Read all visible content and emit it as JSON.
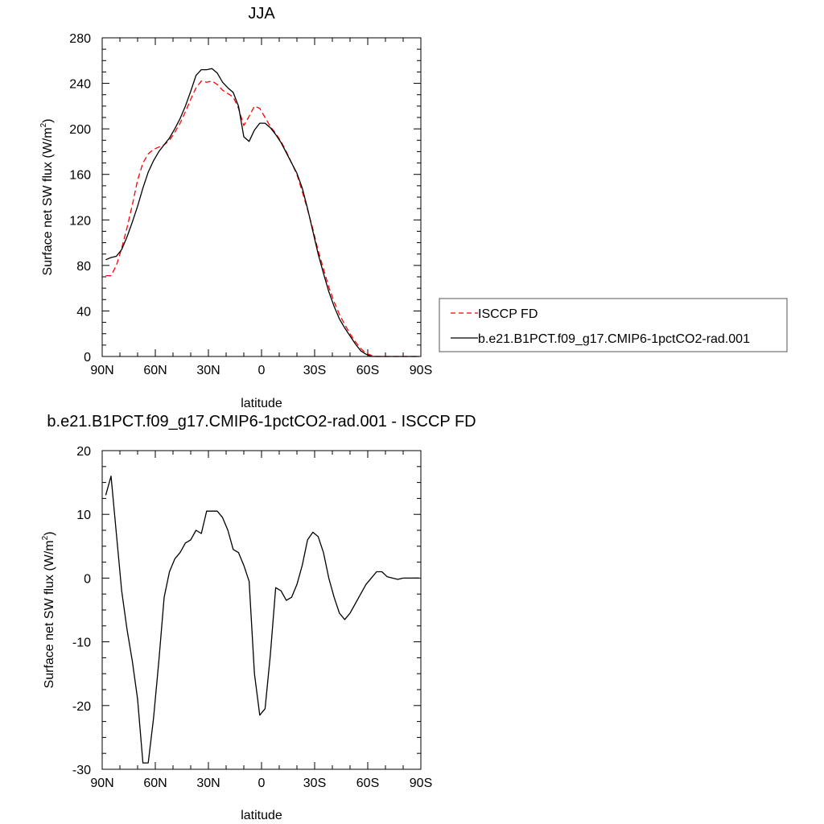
{
  "chart_data": [
    {
      "type": "line",
      "title": "JJA",
      "xlabel": "latitude",
      "ylabel": "Surface net SW flux (W/m²)",
      "ylabel_main": "Surface net SW flux (W/m",
      "ylabel_sup": "2",
      "ylabel_close": ")",
      "xlim": [
        90,
        -90
      ],
      "ylim": [
        0,
        280
      ],
      "x_ticks": [
        90,
        60,
        30,
        0,
        -30,
        -60,
        -90
      ],
      "x_tick_labels": [
        "90N",
        "60N",
        "30N",
        "0",
        "30S",
        "60S",
        "90S"
      ],
      "y_ticks": [
        0,
        40,
        80,
        120,
        160,
        200,
        240,
        280
      ],
      "y_tick_labels": [
        "0",
        "40",
        "80",
        "120",
        "160",
        "200",
        "240",
        "280"
      ],
      "legend_position": "right",
      "series": [
        {
          "name": "ISCCP FD",
          "color": "#ff0000",
          "dash": "dashed",
          "x": [
            88,
            85,
            82,
            79,
            76,
            73,
            70,
            67,
            64,
            61,
            58,
            55,
            52,
            49,
            46,
            43,
            40,
            37,
            34,
            31,
            28,
            25,
            22,
            19,
            16,
            13,
            10,
            7,
            4,
            1,
            -2,
            -5,
            -8,
            -11,
            -14,
            -17,
            -20,
            -23,
            -26,
            -29,
            -32,
            -35,
            -38,
            -41,
            -44,
            -47,
            -50,
            -53,
            -56,
            -59,
            -62,
            -65,
            -68,
            -71,
            -74,
            -77,
            -80,
            -83,
            -86,
            -89
          ],
          "y": [
            71,
            71,
            80,
            95,
            113,
            133,
            155,
            170,
            178,
            182,
            184,
            186,
            190,
            197,
            205,
            215,
            226,
            236,
            242,
            241,
            242,
            239,
            234,
            231,
            228,
            218,
            203,
            211,
            220,
            218,
            210,
            202,
            196,
            189,
            180,
            170,
            160,
            145,
            129,
            112,
            93,
            77,
            61,
            48,
            37,
            28,
            20,
            13,
            7,
            3,
            1,
            0,
            0,
            0,
            0,
            0,
            0,
            0,
            0,
            0
          ]
        },
        {
          "name": "b.e21.B1PCT.f09_g17.CMIP6-1pctCO2-rad.001",
          "color": "#000000",
          "dash": "solid",
          "x": [
            88,
            85,
            82,
            79,
            76,
            73,
            70,
            67,
            64,
            61,
            58,
            55,
            52,
            49,
            46,
            43,
            40,
            37,
            34,
            31,
            28,
            25,
            22,
            19,
            16,
            13,
            10,
            7,
            4,
            1,
            -2,
            -5,
            -8,
            -11,
            -14,
            -17,
            -20,
            -23,
            -26,
            -29,
            -32,
            -35,
            -38,
            -41,
            -44,
            -47,
            -50,
            -53,
            -56,
            -59,
            -62,
            -65,
            -68,
            -71,
            -74,
            -77,
            -80,
            -83,
            -86,
            -89
          ],
          "y": [
            85,
            87,
            88,
            94,
            105,
            118,
            132,
            148,
            162,
            172,
            180,
            186,
            192,
            200,
            209,
            220,
            233,
            247,
            252,
            252,
            253,
            249,
            241,
            236,
            232,
            220,
            193,
            189,
            199,
            205,
            205,
            201,
            195,
            188,
            179,
            170,
            161,
            148,
            130,
            110,
            90,
            73,
            57,
            44,
            33,
            25,
            18,
            11,
            5,
            2,
            0,
            0,
            0,
            0,
            0,
            0,
            0,
            0,
            0,
            0
          ]
        }
      ]
    },
    {
      "type": "line",
      "title": "b.e21.B1PCT.f09_g17.CMIP6-1pctCO2-rad.001 - ISCCP FD",
      "xlabel": "latitude",
      "ylabel": "Surface net SW flux (W/m²)",
      "ylabel_main": "Surface net SW flux (W/m",
      "ylabel_sup": "2",
      "ylabel_close": ")",
      "xlim": [
        90,
        -90
      ],
      "ylim": [
        -30,
        20
      ],
      "x_ticks": [
        90,
        60,
        30,
        0,
        -30,
        -60,
        -90
      ],
      "x_tick_labels": [
        "90N",
        "60N",
        "30N",
        "0",
        "30S",
        "60S",
        "90S"
      ],
      "y_ticks": [
        -30,
        -20,
        -10,
        0,
        10,
        20
      ],
      "y_tick_labels": [
        "-30",
        "-20",
        "-10",
        "0",
        "10",
        "20"
      ],
      "series": [
        {
          "color": "#000000",
          "dash": "solid",
          "x": [
            88,
            85,
            82,
            79,
            76,
            73,
            70,
            67,
            64,
            61,
            58,
            55,
            52,
            49,
            46,
            43,
            40,
            37,
            34,
            31,
            28,
            25,
            22,
            19,
            16,
            13,
            10,
            7,
            4,
            1,
            -2,
            -5,
            -8,
            -11,
            -14,
            -17,
            -20,
            -23,
            -26,
            -29,
            -32,
            -35,
            -38,
            -41,
            -44,
            -47,
            -50,
            -53,
            -56,
            -59,
            -62,
            -65,
            -68,
            -71,
            -74,
            -77,
            -80,
            -83,
            -86,
            -89
          ],
          "y": [
            13,
            16,
            7,
            -2,
            -8,
            -13,
            -19,
            -29,
            -29,
            -22,
            -13,
            -3,
            1,
            3,
            4,
            5.5,
            6,
            7.5,
            7,
            10.5,
            10.5,
            10.5,
            9.5,
            7.5,
            4.5,
            4,
            2,
            -0.5,
            -15,
            -21.5,
            -20.5,
            -12,
            -1.5,
            -2,
            -3.5,
            -3,
            -1,
            2,
            6,
            7.2,
            6.5,
            4,
            0,
            -3,
            -5.5,
            -6.5,
            -5.5,
            -4,
            -2.5,
            -1,
            0,
            1,
            1,
            0.2,
            0,
            -0.2,
            0,
            0,
            0,
            0
          ]
        }
      ]
    }
  ]
}
